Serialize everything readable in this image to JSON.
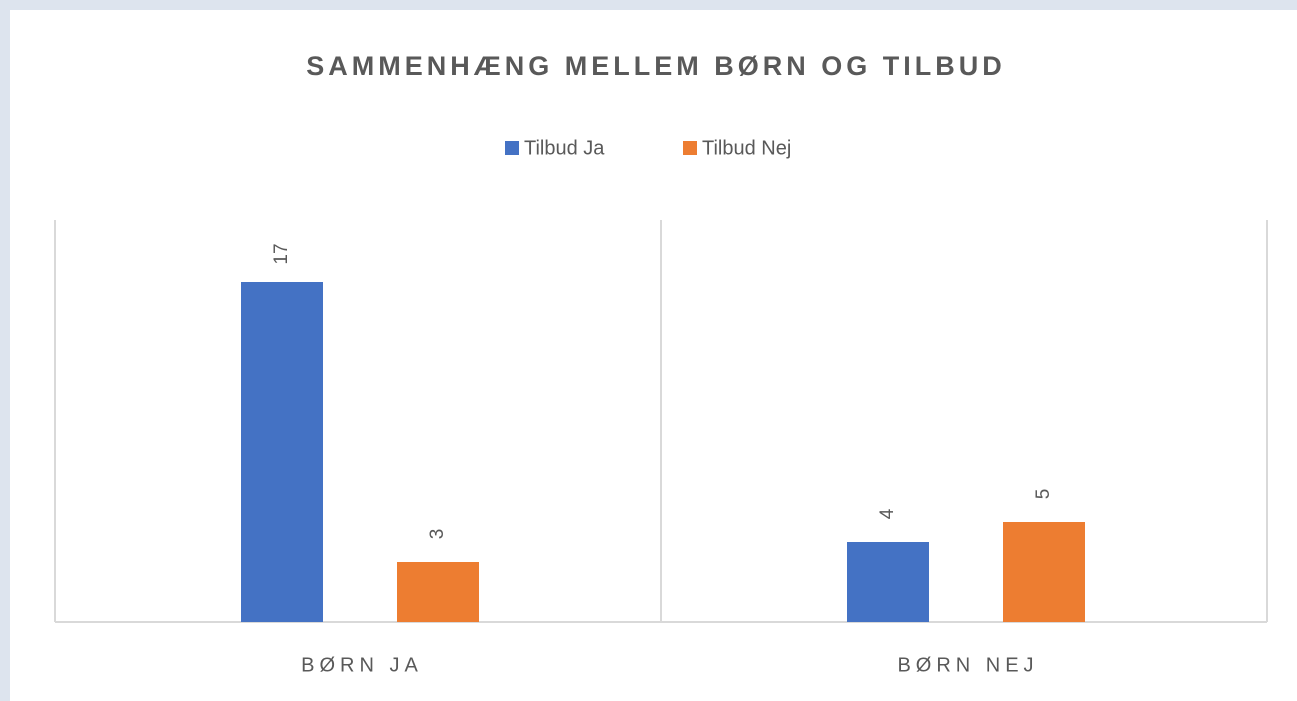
{
  "chart_data": {
    "type": "bar",
    "title": "SAMMENHÆNG MELLEM BØRN OG TILBUD",
    "categories": [
      "BØRN JA",
      "BØRN NEJ"
    ],
    "series": [
      {
        "name": "Tilbud Ja",
        "color": "#4472c4",
        "values": [
          17,
          4
        ]
      },
      {
        "name": "Tilbud Nej",
        "color": "#ed7d31",
        "values": [
          3,
          5
        ]
      }
    ],
    "ylim": [
      0,
      20
    ],
    "legend": "top"
  }
}
